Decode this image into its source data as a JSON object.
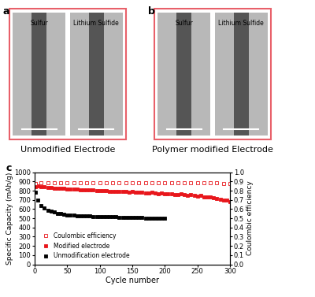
{
  "panels": [
    {
      "label": "a",
      "images": [
        "Sulfur",
        "Lithium Sulfide"
      ],
      "caption": "Unmodified Electrode"
    },
    {
      "label": "b",
      "images": [
        "Sulfur",
        "Lithium Sulfide"
      ],
      "caption": "Polymer modified Electrode"
    }
  ],
  "chart_data": {
    "type": "scatter",
    "panel_label": "c",
    "x_label": "Cycle number",
    "y_label": "Specific Capacity (mAh/g)",
    "y2_label": "Coulombic efficiency",
    "xlim": [
      0,
      300
    ],
    "xticks": [
      0,
      50,
      100,
      150,
      200,
      250,
      300
    ],
    "ylim": [
      0,
      1000
    ],
    "yticks": [
      0,
      100,
      200,
      300,
      400,
      500,
      600,
      700,
      800,
      900,
      1000
    ],
    "y2lim": [
      0.0,
      1.0
    ],
    "y2ticks": [
      0.0,
      0.1,
      0.2,
      0.3,
      0.4,
      0.5,
      0.6,
      0.7,
      0.8,
      0.9,
      1.0
    ],
    "legend": "lower left",
    "series": [
      {
        "name": "Coulombic efficiency",
        "color": "#e8161b",
        "marker": "open_square",
        "axis": "y2",
        "x": [
          1,
          10,
          20,
          30,
          40,
          50,
          60,
          70,
          80,
          90,
          100,
          110,
          120,
          130,
          140,
          150,
          160,
          170,
          180,
          190,
          200,
          210,
          220,
          230,
          240,
          250,
          260,
          270,
          280,
          290,
          300
        ],
        "values": [
          0.88,
          0.89,
          0.89,
          0.89,
          0.89,
          0.89,
          0.89,
          0.89,
          0.89,
          0.89,
          0.89,
          0.89,
          0.89,
          0.89,
          0.89,
          0.89,
          0.89,
          0.89,
          0.89,
          0.89,
          0.89,
          0.89,
          0.89,
          0.89,
          0.89,
          0.89,
          0.89,
          0.89,
          0.89,
          0.88,
          0.88
        ]
      },
      {
        "name": "Modified electrode",
        "color": "#e8161b",
        "marker": "square",
        "x": [
          1,
          5,
          10,
          15,
          20,
          25,
          30,
          35,
          40,
          45,
          50,
          55,
          60,
          65,
          70,
          75,
          80,
          85,
          90,
          95,
          100,
          105,
          110,
          115,
          120,
          125,
          130,
          135,
          140,
          145,
          150,
          155,
          160,
          165,
          170,
          175,
          180,
          185,
          190,
          195,
          200,
          205,
          210,
          215,
          220,
          225,
          230,
          235,
          240,
          245,
          250,
          255,
          260,
          265,
          270,
          275,
          280,
          285,
          290,
          295,
          300
        ],
        "values": [
          840,
          850,
          845,
          840,
          835,
          835,
          830,
          830,
          825,
          825,
          820,
          818,
          815,
          815,
          812,
          810,
          808,
          810,
          805,
          800,
          800,
          798,
          800,
          795,
          795,
          792,
          790,
          795,
          790,
          785,
          790,
          785,
          780,
          785,
          778,
          775,
          780,
          772,
          770,
          775,
          768,
          765,
          770,
          760,
          758,
          762,
          755,
          750,
          755,
          745,
          740,
          745,
          735,
          730,
          735,
          720,
          715,
          710,
          700,
          695,
          680
        ]
      },
      {
        "name": "Unmodification electrode",
        "color": "#000000",
        "marker": "square",
        "x": [
          1,
          5,
          10,
          15,
          20,
          25,
          30,
          35,
          40,
          45,
          50,
          55,
          60,
          65,
          70,
          75,
          80,
          85,
          90,
          95,
          100,
          105,
          110,
          115,
          120,
          125,
          130,
          135,
          140,
          145,
          150,
          155,
          160,
          165,
          170,
          175,
          180,
          185,
          190,
          195,
          200
        ],
        "values": [
          780,
          700,
          640,
          610,
          590,
          575,
          565,
          555,
          548,
          542,
          538,
          535,
          532,
          530,
          528,
          526,
          525,
          523,
          522,
          520,
          519,
          518,
          517,
          516,
          515,
          514,
          513,
          512,
          511,
          510,
          509,
          508,
          507,
          506,
          505,
          504,
          503,
          502,
          501,
          500,
          499
        ]
      }
    ]
  }
}
